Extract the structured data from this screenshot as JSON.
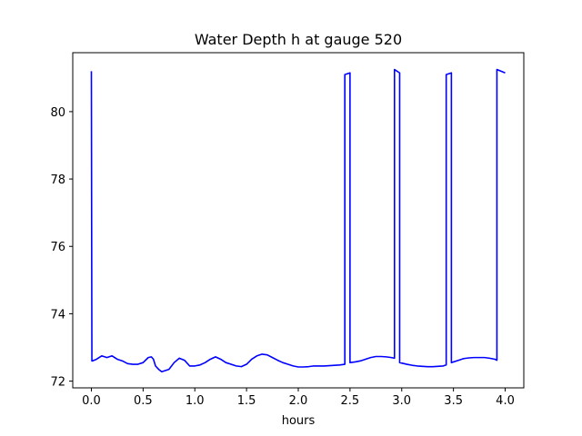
{
  "chart_data": {
    "type": "line",
    "title": "Water Depth h at gauge 520",
    "xlabel": "hours",
    "ylabel": "",
    "xlim": [
      -0.18,
      4.18
    ],
    "ylim": [
      71.8,
      81.75
    ],
    "grid": false,
    "xticks": [
      0.0,
      0.5,
      1.0,
      1.5,
      2.0,
      2.5,
      3.0,
      3.5,
      4.0
    ],
    "xtick_labels": [
      "0.0",
      "0.5",
      "1.0",
      "1.5",
      "2.0",
      "2.5",
      "3.0",
      "3.5",
      "4.0"
    ],
    "yticks": [
      72,
      74,
      76,
      78,
      80
    ],
    "ytick_labels": [
      "72",
      "74",
      "76",
      "78",
      "80"
    ],
    "series": [
      {
        "color": "#0000ff",
        "x": [
          0.0,
          0.005,
          0.01,
          0.05,
          0.1,
          0.15,
          0.2,
          0.25,
          0.3,
          0.35,
          0.4,
          0.45,
          0.5,
          0.55,
          0.58,
          0.6,
          0.62,
          0.65,
          0.68,
          0.7,
          0.75,
          0.8,
          0.85,
          0.9,
          0.95,
          1.0,
          1.05,
          1.1,
          1.15,
          1.2,
          1.25,
          1.3,
          1.35,
          1.4,
          1.45,
          1.5,
          1.55,
          1.6,
          1.65,
          1.7,
          1.75,
          1.8,
          1.85,
          1.9,
          1.95,
          2.0,
          2.05,
          2.1,
          2.15,
          2.2,
          2.25,
          2.3,
          2.35,
          2.4,
          2.45,
          2.45,
          2.5,
          2.5,
          2.55,
          2.6,
          2.65,
          2.7,
          2.75,
          2.8,
          2.85,
          2.9,
          2.93,
          2.93,
          2.98,
          2.98,
          3.05,
          3.1,
          3.15,
          3.2,
          3.25,
          3.3,
          3.35,
          3.4,
          3.43,
          3.43,
          3.48,
          3.48,
          3.55,
          3.6,
          3.65,
          3.7,
          3.75,
          3.8,
          3.85,
          3.9,
          3.92,
          3.92,
          4.0
        ],
        "y": [
          81.2,
          72.6,
          72.6,
          72.65,
          72.75,
          72.7,
          72.75,
          72.65,
          72.6,
          72.52,
          72.5,
          72.5,
          72.55,
          72.7,
          72.72,
          72.65,
          72.45,
          72.35,
          72.28,
          72.3,
          72.35,
          72.55,
          72.68,
          72.62,
          72.45,
          72.45,
          72.48,
          72.55,
          72.65,
          72.72,
          72.65,
          72.55,
          72.5,
          72.45,
          72.43,
          72.5,
          72.65,
          72.75,
          72.8,
          72.78,
          72.7,
          72.62,
          72.55,
          72.5,
          72.45,
          72.42,
          72.42,
          72.43,
          72.45,
          72.45,
          72.45,
          72.46,
          72.47,
          72.48,
          72.5,
          81.1,
          81.15,
          72.55,
          72.57,
          72.6,
          72.65,
          72.7,
          72.73,
          72.73,
          72.72,
          72.7,
          72.68,
          81.25,
          81.15,
          72.55,
          72.5,
          72.47,
          72.45,
          72.44,
          72.43,
          72.43,
          72.44,
          72.45,
          72.48,
          81.1,
          81.15,
          72.55,
          72.62,
          72.67,
          72.69,
          72.7,
          72.7,
          72.7,
          72.68,
          72.65,
          72.62,
          81.25,
          81.15
        ]
      }
    ]
  }
}
